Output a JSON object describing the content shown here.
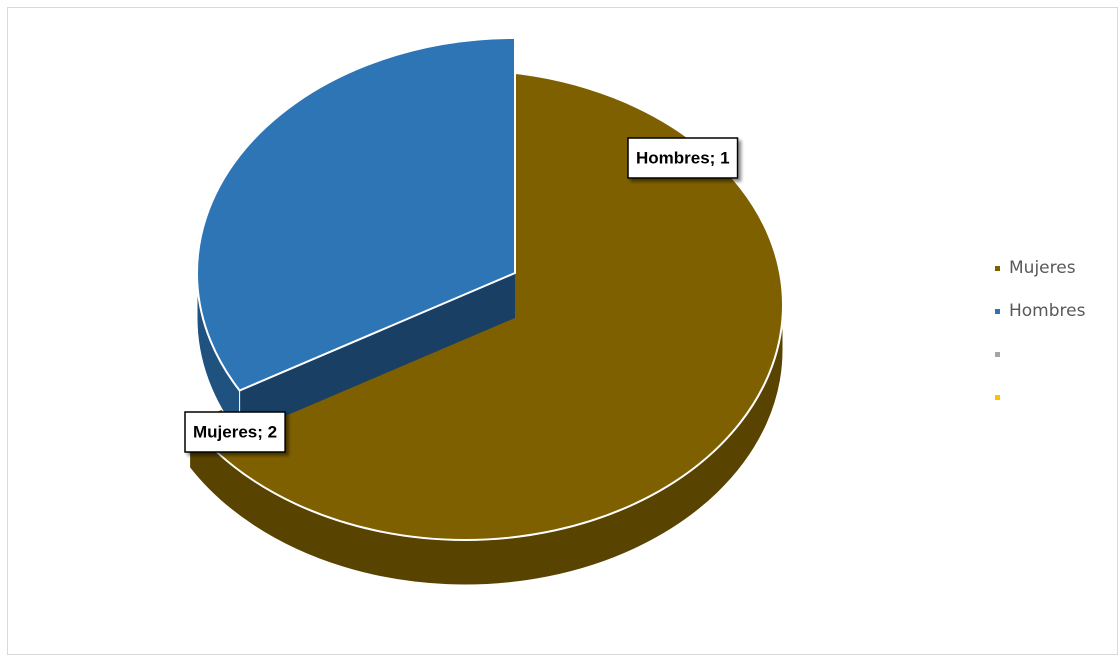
{
  "chart_data": {
    "type": "pie",
    "categories": [
      "Mujeres",
      "Hombres",
      null,
      null
    ],
    "values": [
      2,
      1,
      null,
      null
    ],
    "value_labels": [
      "Mujeres; 2",
      "Hombres; 1",
      null,
      null
    ],
    "colors": [
      "#7f6000",
      "#2e75b6",
      "#a5a5a5",
      "#ffc000"
    ],
    "legend": "right"
  }
}
